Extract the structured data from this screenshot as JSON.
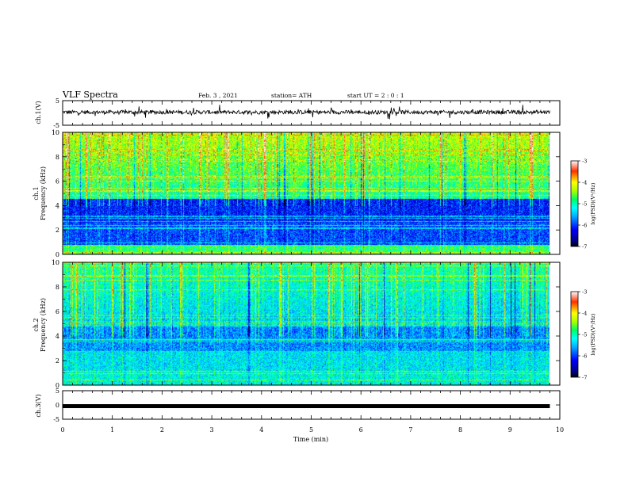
{
  "header": {
    "title": "VLF Spectra",
    "date": "Feb. 3 , 2021",
    "station": "station= ATH",
    "start_ut": "start UT = 2 : 0 : 1"
  },
  "chart_data": [
    {
      "type": "line",
      "name": "ch1-waveform",
      "ylabel": "ch.1(V)",
      "ylim": [
        -5,
        5
      ],
      "yticks": [
        "5",
        "-5"
      ],
      "xlim": [
        0,
        10
      ],
      "trace_level": 0.3,
      "trace_end": 9.8
    },
    {
      "type": "heatmap",
      "name": "ch1-spectrogram",
      "ylabel_line1": "ch.1",
      "ylabel_line2": "Frequency (kHz)",
      "ylim": [
        0,
        10
      ],
      "yticks": [
        "0",
        "2",
        "4",
        "6",
        "8",
        "10"
      ],
      "xlim": [
        0,
        10
      ],
      "data_end": 9.8,
      "colorbar": {
        "label": "log(PSD)(V²/Hz)",
        "ticks": [
          "-3",
          "-4",
          "-5",
          "-6",
          "-7"
        ],
        "range": [
          -7,
          -3
        ]
      }
    },
    {
      "type": "heatmap",
      "name": "ch2-spectrogram",
      "ylabel_line1": "ch.2",
      "ylabel_line2": "Frequency (kHz)",
      "ylim": [
        0,
        10
      ],
      "yticks": [
        "0",
        "2",
        "4",
        "6",
        "8",
        "10"
      ],
      "xlim": [
        0,
        10
      ],
      "data_end": 9.8,
      "colorbar": {
        "label": "log(PSD)(V²/Hz)",
        "ticks": [
          "-3",
          "-4",
          "-5",
          "-6",
          "-7"
        ],
        "range": [
          -7,
          -3
        ]
      }
    },
    {
      "type": "line",
      "name": "ch3-waveform",
      "ylabel": "ch.3(V)",
      "ylim": [
        -5,
        5
      ],
      "yticks": [
        "5",
        "0",
        "-5"
      ],
      "xlim": [
        0,
        10
      ],
      "trace_level": -0.4,
      "trace_end": 9.8
    }
  ],
  "xaxis": {
    "label": "Time (min)",
    "ticks": [
      "0",
      "1",
      "2",
      "3",
      "4",
      "5",
      "6",
      "7",
      "8",
      "9",
      "10"
    ]
  },
  "colors": {
    "colormap": [
      "#000080",
      "#0000ff",
      "#00a0ff",
      "#00ffff",
      "#00ff80",
      "#80ff00",
      "#ffff00",
      "#ff8000",
      "#ff0000",
      "#800000"
    ]
  }
}
